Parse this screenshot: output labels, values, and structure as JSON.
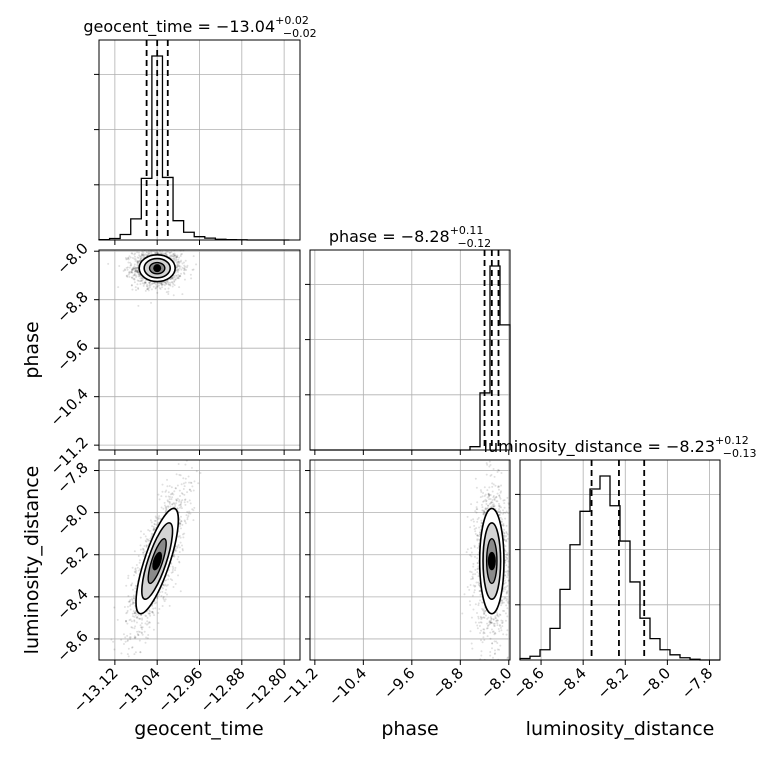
{
  "chart_data": {
    "type": "corner",
    "params": [
      "geocent_time",
      "phase",
      "luminosity_distance"
    ],
    "titles": [
      {
        "param": "geocent_time",
        "prefix": "geocent_time = ",
        "median": "−13.04",
        "plus": "+0.02",
        "minus": "−0.02"
      },
      {
        "param": "phase",
        "prefix": "phase = ",
        "median": "−8.28",
        "plus": "+0.11",
        "minus": "−0.12"
      },
      {
        "param": "luminosity_distance",
        "prefix": "luminosity_distance = ",
        "median": "−8.23",
        "plus": "+0.12",
        "minus": "−0.13"
      }
    ],
    "ranges": {
      "geocent_time": [
        -13.15,
        -12.77
      ],
      "phase": [
        -11.28,
        -7.98
      ],
      "luminosity_distance": [
        -8.7,
        -7.75
      ]
    },
    "ticks": {
      "geocent_time": [
        {
          "v": -13.12,
          "label": "−13.12"
        },
        {
          "v": -13.04,
          "label": "−13.04"
        },
        {
          "v": -12.96,
          "label": "−12.96"
        },
        {
          "v": -12.88,
          "label": "−12.88"
        },
        {
          "v": -12.8,
          "label": "−12.80"
        }
      ],
      "phase": [
        {
          "v": -11.2,
          "label": "−11.2"
        },
        {
          "v": -10.4,
          "label": "−10.4"
        },
        {
          "v": -9.6,
          "label": "−9.6"
        },
        {
          "v": -8.8,
          "label": "−8.8"
        },
        {
          "v": -8.0,
          "label": "−8.0"
        }
      ],
      "phase_y": [
        {
          "v": -8.0,
          "label": "−8.0"
        },
        {
          "v": -8.8,
          "label": "−8.8"
        },
        {
          "v": -9.6,
          "label": "−9.6"
        },
        {
          "v": -10.4,
          "label": "−10.4"
        },
        {
          "v": -11.2,
          "label": "−11.2"
        }
      ],
      "luminosity_distance": [
        {
          "v": -8.6,
          "label": "−8.6"
        },
        {
          "v": -8.4,
          "label": "−8.4"
        },
        {
          "v": -8.2,
          "label": "−8.2"
        },
        {
          "v": -8.0,
          "label": "−8.0"
        },
        {
          "v": -7.8,
          "label": "−7.8"
        }
      ],
      "luminosity_distance_y": [
        {
          "v": -7.8,
          "label": "−7.8"
        },
        {
          "v": -8.0,
          "label": "−8.0"
        },
        {
          "v": -8.2,
          "label": "−8.2"
        },
        {
          "v": -8.4,
          "label": "−8.4"
        },
        {
          "v": -8.6,
          "label": "−8.6"
        }
      ]
    },
    "quantiles": {
      "geocent_time": [
        -13.06,
        -13.04,
        -13.02
      ],
      "phase": [
        -8.4,
        -8.28,
        -8.17
      ],
      "luminosity_distance": [
        -8.36,
        -8.23,
        -8.11
      ]
    },
    "histograms": {
      "geocent_time": {
        "edges": [
          -13.15,
          -13.13,
          -13.11,
          -13.09,
          -13.07,
          -13.05,
          -13.03,
          -13.01,
          -12.99,
          -12.97,
          -12.95,
          -12.93,
          -12.91,
          -12.89,
          -12.87,
          -12.85,
          -12.83,
          -12.81,
          -12.79
        ],
        "counts": [
          2,
          8,
          30,
          115,
          335,
          1000,
          340,
          105,
          42,
          18,
          10,
          4,
          2,
          1,
          0,
          0,
          0,
          0
        ]
      },
      "phase": {
        "edges": [
          -11.28,
          -11.115,
          -10.95,
          -10.785,
          -10.62,
          -10.455,
          -10.29,
          -10.125,
          -9.96,
          -9.795,
          -9.63,
          -9.465,
          -9.3,
          -9.135,
          -8.97,
          -8.805,
          -8.64,
          -8.475,
          -8.31,
          -8.145,
          -7.98
        ],
        "counts": [
          0,
          0,
          0,
          0,
          0,
          0,
          0,
          0,
          0,
          0,
          0,
          0,
          0,
          0,
          0,
          0,
          18,
          310,
          1000,
          680
        ]
      },
      "luminosity_distance": {
        "edges": [
          -8.7,
          -8.6525,
          -8.605,
          -8.5575,
          -8.51,
          -8.4625,
          -8.415,
          -8.3675,
          -8.32,
          -8.2725,
          -8.225,
          -8.1775,
          -8.13,
          -8.0825,
          -8.035,
          -7.9875,
          -7.94,
          -7.8925,
          -7.845,
          -7.7975,
          -7.75
        ],
        "counts": [
          8,
          20,
          55,
          170,
          380,
          620,
          800,
          920,
          990,
          830,
          640,
          420,
          225,
          115,
          55,
          28,
          12,
          4,
          0,
          0
        ]
      }
    },
    "scatter_spread": {
      "geocent_time_phase": {
        "mx": -13.04,
        "sx": 0.017,
        "my": -8.28,
        "sy": 0.11,
        "rho": 0.0
      },
      "geocent_time_luminosity_distance": {
        "mx": -13.04,
        "sx": 0.02,
        "my": -8.23,
        "sy": 0.125,
        "rho": 0.78
      },
      "phase_luminosity_distance": {
        "mx": -8.28,
        "sx": 0.1,
        "my": -8.23,
        "sy": 0.125,
        "rho": 0.0
      }
    },
    "grid": true,
    "legend": "none"
  }
}
